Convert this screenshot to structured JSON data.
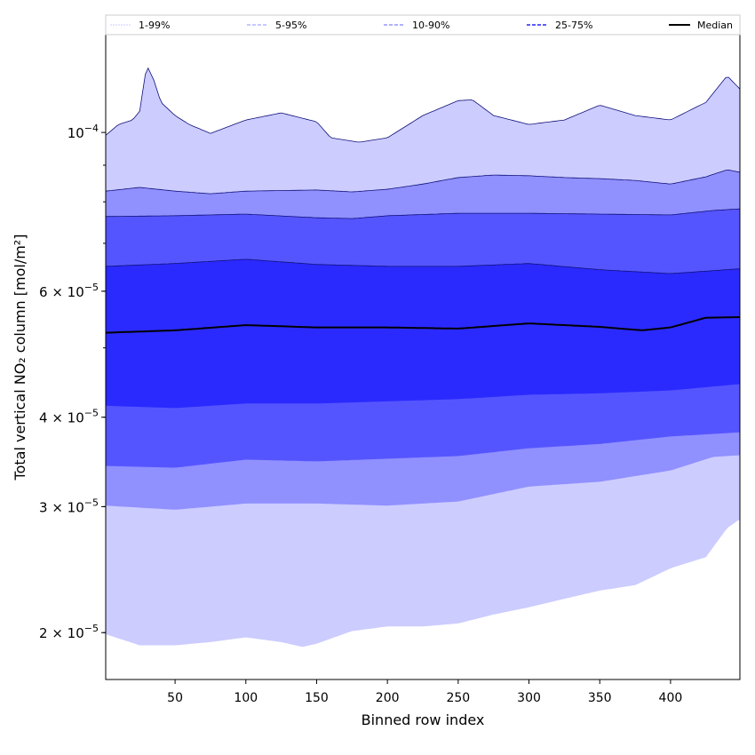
{
  "chart_data": {
    "type": "area",
    "title": "",
    "xlabel": "Binned row index",
    "ylabel": "Total vertical NO₂ column [mol/m²]",
    "y_scale": "log",
    "value_unit_multiplier": 1e-05,
    "xlim": [
      1,
      449
    ],
    "ylim": [
      1.72,
      13.7
    ],
    "x_ticks": [
      50,
      100,
      150,
      200,
      250,
      300,
      350,
      400
    ],
    "y_ticks": [
      {
        "value": 10,
        "coef": "10",
        "exp": "−4"
      },
      {
        "value": 6,
        "coef": "6 × 10",
        "exp": "−5"
      },
      {
        "value": 4,
        "coef": "4 × 10",
        "exp": "−5"
      },
      {
        "value": 3,
        "coef": "3 × 10",
        "exp": "−5"
      },
      {
        "value": 2,
        "coef": "2 × 10",
        "exp": "−5"
      }
    ],
    "y_minor_ticks": [
      2,
      3,
      4,
      5,
      6,
      7,
      8,
      9
    ],
    "legend": {
      "placement": "top",
      "entries": [
        {
          "label": "1-99%",
          "color": "#d8d8ff",
          "style": "dotted"
        },
        {
          "label": "5-95%",
          "color": "#a8a8ff",
          "style": "dashed"
        },
        {
          "label": "10-90%",
          "color": "#8080ff",
          "style": "dashed"
        },
        {
          "label": "25-75%",
          "color": "#5c5cff",
          "style": "dashed"
        },
        {
          "label": "Median",
          "color": "#000000",
          "style": "solid"
        }
      ]
    },
    "bands": [
      {
        "name": "1-99%",
        "fill": "#ccccff",
        "lower": [
          [
            1,
            1.99
          ],
          [
            25,
            1.92
          ],
          [
            50,
            1.92
          ],
          [
            75,
            1.94
          ],
          [
            100,
            1.97
          ],
          [
            125,
            1.94
          ],
          [
            140,
            1.91
          ],
          [
            150,
            1.93
          ],
          [
            175,
            2.01
          ],
          [
            200,
            2.04
          ],
          [
            225,
            2.04
          ],
          [
            250,
            2.06
          ],
          [
            275,
            2.12
          ],
          [
            300,
            2.17
          ],
          [
            325,
            2.23
          ],
          [
            350,
            2.29
          ],
          [
            375,
            2.33
          ],
          [
            400,
            2.46
          ],
          [
            425,
            2.55
          ],
          [
            440,
            2.8
          ],
          [
            449,
            2.88
          ]
        ],
        "upper": [
          [
            1,
            9.91
          ],
          [
            10,
            10.26
          ],
          [
            20,
            10.41
          ],
          [
            25,
            10.71
          ],
          [
            30,
            12.42
          ],
          [
            35,
            11.83
          ],
          [
            40,
            11.02
          ],
          [
            50,
            10.56
          ],
          [
            60,
            10.26
          ],
          [
            75,
            9.97
          ],
          [
            100,
            10.41
          ],
          [
            125,
            10.65
          ],
          [
            150,
            10.35
          ],
          [
            160,
            9.83
          ],
          [
            180,
            9.69
          ],
          [
            200,
            9.83
          ],
          [
            225,
            10.56
          ],
          [
            250,
            11.08
          ],
          [
            260,
            11.11
          ],
          [
            275,
            10.56
          ],
          [
            300,
            10.26
          ],
          [
            325,
            10.41
          ],
          [
            350,
            10.92
          ],
          [
            375,
            10.56
          ],
          [
            400,
            10.41
          ],
          [
            425,
            11.02
          ],
          [
            440,
            12.0
          ],
          [
            449,
            11.5
          ]
        ]
      },
      {
        "name": "5-95%",
        "fill": "#9090ff",
        "lower": [
          [
            1,
            3.01
          ],
          [
            50,
            2.97
          ],
          [
            100,
            3.03
          ],
          [
            150,
            3.03
          ],
          [
            200,
            3.01
          ],
          [
            250,
            3.05
          ],
          [
            300,
            3.2
          ],
          [
            350,
            3.25
          ],
          [
            400,
            3.37
          ],
          [
            430,
            3.52
          ],
          [
            449,
            3.54
          ]
        ],
        "upper": [
          [
            1,
            8.28
          ],
          [
            25,
            8.38
          ],
          [
            50,
            8.28
          ],
          [
            75,
            8.21
          ],
          [
            100,
            8.28
          ],
          [
            150,
            8.31
          ],
          [
            175,
            8.26
          ],
          [
            200,
            8.33
          ],
          [
            225,
            8.47
          ],
          [
            250,
            8.65
          ],
          [
            275,
            8.72
          ],
          [
            300,
            8.7
          ],
          [
            325,
            8.65
          ],
          [
            350,
            8.62
          ],
          [
            375,
            8.57
          ],
          [
            400,
            8.47
          ],
          [
            425,
            8.67
          ],
          [
            440,
            8.87
          ],
          [
            449,
            8.8
          ]
        ]
      },
      {
        "name": "10-90%",
        "fill": "#5555ff",
        "lower": [
          [
            1,
            3.42
          ],
          [
            50,
            3.4
          ],
          [
            100,
            3.49
          ],
          [
            150,
            3.47
          ],
          [
            200,
            3.5
          ],
          [
            250,
            3.53
          ],
          [
            300,
            3.62
          ],
          [
            350,
            3.67
          ],
          [
            400,
            3.76
          ],
          [
            449,
            3.81
          ]
        ],
        "upper": [
          [
            1,
            7.63
          ],
          [
            50,
            7.65
          ],
          [
            100,
            7.69
          ],
          [
            150,
            7.6
          ],
          [
            175,
            7.58
          ],
          [
            200,
            7.65
          ],
          [
            250,
            7.71
          ],
          [
            300,
            7.71
          ],
          [
            350,
            7.69
          ],
          [
            400,
            7.67
          ],
          [
            430,
            7.78
          ],
          [
            449,
            7.82
          ]
        ]
      },
      {
        "name": "25-75%",
        "fill": "#2a2aff",
        "lower": [
          [
            1,
            4.15
          ],
          [
            50,
            4.12
          ],
          [
            100,
            4.18
          ],
          [
            150,
            4.18
          ],
          [
            200,
            4.21
          ],
          [
            250,
            4.24
          ],
          [
            300,
            4.3
          ],
          [
            350,
            4.32
          ],
          [
            400,
            4.36
          ],
          [
            449,
            4.45
          ]
        ],
        "upper": [
          [
            1,
            6.5
          ],
          [
            50,
            6.56
          ],
          [
            100,
            6.65
          ],
          [
            150,
            6.54
          ],
          [
            200,
            6.5
          ],
          [
            250,
            6.5
          ],
          [
            300,
            6.56
          ],
          [
            350,
            6.43
          ],
          [
            400,
            6.35
          ],
          [
            430,
            6.41
          ],
          [
            449,
            6.45
          ]
        ]
      }
    ],
    "median": [
      [
        1,
        5.25
      ],
      [
        50,
        5.29
      ],
      [
        100,
        5.38
      ],
      [
        150,
        5.34
      ],
      [
        200,
        5.34
      ],
      [
        250,
        5.32
      ],
      [
        300,
        5.41
      ],
      [
        350,
        5.35
      ],
      [
        380,
        5.29
      ],
      [
        400,
        5.34
      ],
      [
        425,
        5.51
      ],
      [
        449,
        5.52
      ]
    ]
  }
}
